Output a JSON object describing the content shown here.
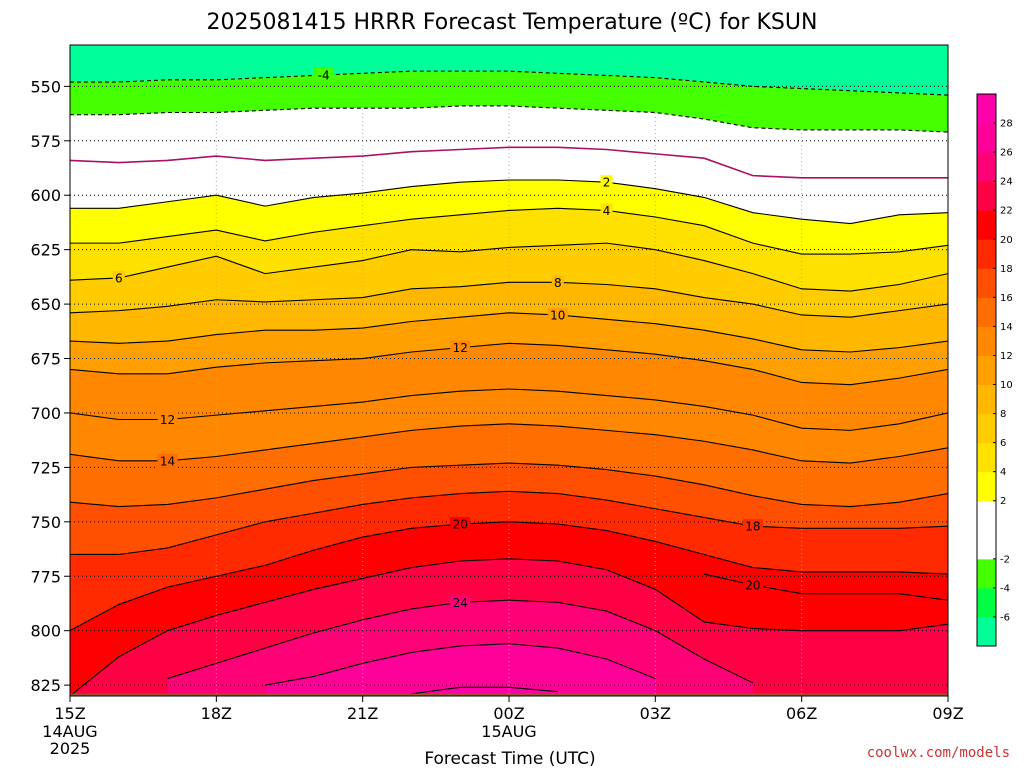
{
  "chart_data": {
    "type": "filled-contour",
    "title": "2025081415 HRRR Forecast Temperature (ºC) for KSUN",
    "xlabel": "Forecast Time (UTC)",
    "x_ticks": [
      {
        "label": "15Z",
        "sub": [
          "14AUG",
          "2025"
        ],
        "hour": 0
      },
      {
        "label": "18Z",
        "sub": [],
        "hour": 3
      },
      {
        "label": "21Z",
        "sub": [],
        "hour": 6
      },
      {
        "label": "00Z",
        "sub": [
          "15AUG"
        ],
        "hour": 9
      },
      {
        "label": "03Z",
        "sub": [],
        "hour": 12
      },
      {
        "label": "06Z",
        "sub": [],
        "hour": 15
      },
      {
        "label": "09Z",
        "sub": [],
        "hour": 18
      }
    ],
    "ylabel": "",
    "y_ticks": [
      550,
      575,
      600,
      625,
      650,
      675,
      700,
      725,
      750,
      775,
      800,
      825
    ],
    "ylim": [
      830,
      531
    ],
    "xlim": [
      0,
      18
    ],
    "colorbar": {
      "levels": [
        -8,
        -6,
        -4,
        -2,
        0,
        2,
        4,
        6,
        8,
        10,
        12,
        14,
        16,
        18,
        20,
        22,
        24,
        26,
        28,
        30
      ],
      "tick_labels": [
        "-6",
        "-4",
        "-2",
        "2",
        "4",
        "6",
        "8",
        "10",
        "12",
        "14",
        "16",
        "18",
        "20",
        "22",
        "24",
        "26",
        "28"
      ],
      "colors": [
        "#00ff99",
        "#00ff44",
        "#44ff00",
        "#ffffff",
        "#ffffff",
        "#ffff00",
        "#ffe100",
        "#ffcc00",
        "#ffb700",
        "#ffa000",
        "#ff8800",
        "#ff6e00",
        "#ff4f00",
        "#ff2a00",
        "#ff0000",
        "#ff0044",
        "#ff0077",
        "#ff0099",
        "#ff00aa"
      ]
    },
    "series": [
      {
        "value": -4,
        "style": "dashed",
        "label_at": 5.2,
        "p": [
          548,
          548,
          547,
          547,
          546,
          545,
          544,
          543,
          543,
          543,
          544,
          545,
          546,
          548,
          550,
          551,
          552,
          553,
          554
        ]
      },
      {
        "value": -2,
        "style": "dashed",
        "label_at": null,
        "p": [
          563,
          563,
          562,
          562,
          561,
          560,
          560,
          560,
          559,
          559,
          560,
          561,
          562,
          565,
          569,
          570,
          570,
          570,
          571
        ]
      },
      {
        "value": 0,
        "style": "magenta",
        "label_at": null,
        "p": [
          584,
          585,
          584,
          582,
          584,
          583,
          582,
          580,
          579,
          578,
          578,
          579,
          581,
          583,
          591,
          592,
          592,
          592,
          592
        ]
      },
      {
        "value": 2,
        "style": "solid",
        "label_at": 11.0,
        "p": [
          606,
          606,
          603,
          600,
          605,
          601,
          599,
          596,
          594,
          593,
          593,
          594,
          597,
          601,
          608,
          611,
          613,
          609,
          608
        ]
      },
      {
        "value": 4,
        "style": "solid",
        "label_at": 11.0,
        "p": [
          622,
          622,
          619,
          616,
          621,
          617,
          614,
          611,
          609,
          607,
          606,
          607,
          610,
          614,
          622,
          627,
          627,
          626,
          623
        ]
      },
      {
        "value": 6,
        "style": "solid",
        "label_at": 1.0,
        "p": [
          639,
          638,
          633,
          628,
          636,
          633,
          630,
          625,
          626,
          624,
          623,
          622,
          625,
          630,
          636,
          643,
          644,
          641,
          636
        ]
      },
      {
        "value": 8,
        "style": "solid",
        "label_at": 10.0,
        "p": [
          654,
          653,
          651,
          648,
          649,
          648,
          647,
          643,
          642,
          640,
          640,
          641,
          643,
          647,
          650,
          655,
          656,
          653,
          650
        ]
      },
      {
        "value": 10,
        "style": "solid",
        "label_at": 10.0,
        "p": [
          667,
          668,
          667,
          664,
          662,
          662,
          661,
          658,
          656,
          654,
          655,
          657,
          659,
          662,
          666,
          671,
          672,
          670,
          667
        ]
      },
      {
        "value": 12,
        "style": "solid",
        "label_at": 8.0,
        "p": [
          680,
          682,
          682,
          679,
          677,
          676,
          675,
          672,
          670,
          668,
          669,
          671,
          673,
          676,
          680,
          686,
          687,
          684,
          680
        ]
      },
      {
        "value": 12,
        "style": "solid",
        "label_at": 2.0,
        "p": [
          700,
          703,
          703,
          701,
          699,
          697,
          695,
          692,
          690,
          689,
          690,
          692,
          694,
          697,
          701,
          707,
          708,
          705,
          700
        ]
      },
      {
        "value": 14,
        "style": "solid",
        "label_at": 2.0,
        "p": [
          719,
          722,
          722,
          720,
          717,
          714,
          711,
          708,
          706,
          705,
          706,
          708,
          710,
          713,
          717,
          722,
          723,
          720,
          716
        ]
      },
      {
        "value": 16,
        "style": "solid",
        "label_at": null,
        "p": [
          741,
          743,
          742,
          739,
          735,
          731,
          728,
          725,
          724,
          723,
          724,
          726,
          729,
          733,
          738,
          742,
          743,
          741,
          737
        ]
      },
      {
        "value": 18,
        "style": "solid",
        "label_at": 14.0,
        "p": [
          765,
          765,
          762,
          756,
          750,
          746,
          742,
          739,
          737,
          736,
          737,
          740,
          744,
          748,
          752,
          753,
          753,
          753,
          752
        ]
      },
      {
        "value": 20,
        "style": "solid",
        "label_at": 8.0,
        "p": [
          800,
          788,
          780,
          775,
          770,
          763,
          757,
          753,
          751,
          750,
          751,
          754,
          759,
          765,
          771,
          773,
          773,
          773,
          774
        ]
      },
      {
        "value": 20,
        "style": "solid",
        "label_at": 14.0,
        "p": [
          null,
          null,
          null,
          null,
          null,
          null,
          null,
          null,
          null,
          null,
          null,
          null,
          null,
          774,
          779,
          783,
          783,
          783,
          786
        ]
      },
      {
        "value": 22,
        "style": "solid",
        "label_at": null,
        "p": [
          830,
          812,
          800,
          793,
          787,
          781,
          776,
          771,
          768,
          767,
          768,
          772,
          781,
          796,
          799,
          800,
          800,
          800,
          797
        ]
      },
      {
        "value": 24,
        "style": "solid",
        "label_at": 8.0,
        "p": [
          null,
          null,
          822,
          815,
          808,
          801,
          795,
          790,
          787,
          786,
          787,
          791,
          800,
          813,
          824,
          null,
          null,
          null,
          null
        ]
      },
      {
        "value": 26,
        "style": "solid",
        "label_at": null,
        "p": [
          null,
          null,
          null,
          null,
          825,
          821,
          815,
          810,
          807,
          806,
          808,
          813,
          822,
          null,
          null,
          null,
          null,
          null,
          null
        ]
      },
      {
        "value": 28,
        "style": "solid",
        "label_at": null,
        "p": [
          null,
          null,
          null,
          null,
          null,
          null,
          null,
          829,
          826,
          826,
          828,
          null,
          null,
          null,
          null,
          null,
          null,
          null,
          null
        ]
      }
    ],
    "ground_level": 828
  },
  "credit": "coolwx.com/models"
}
